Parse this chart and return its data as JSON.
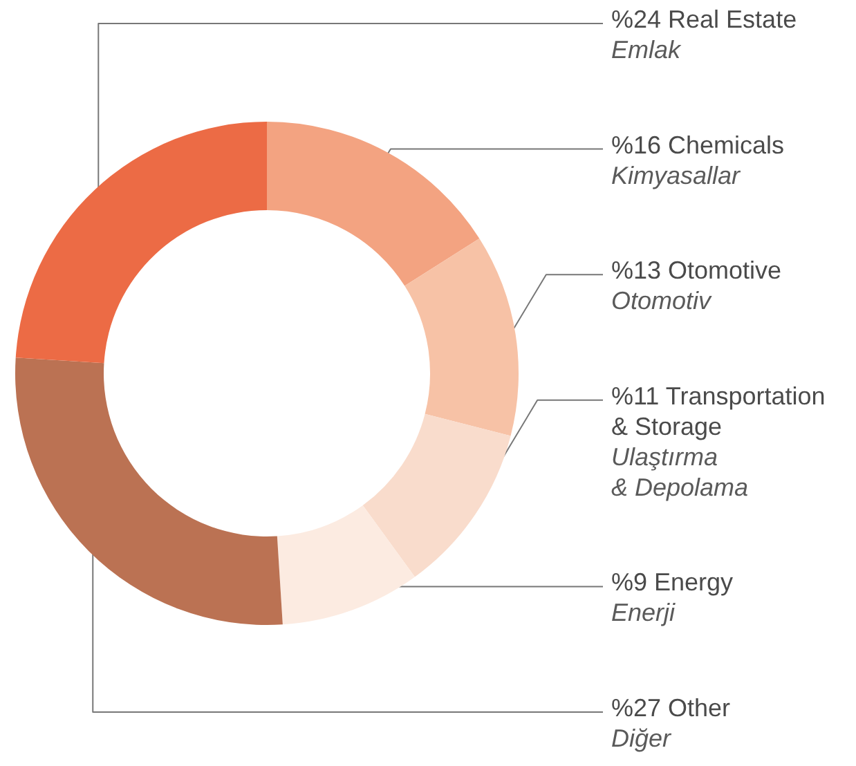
{
  "chart_data": {
    "type": "donut",
    "categories": [
      "Chemicals",
      "Otomotive",
      "Transportation & Storage",
      "Energy",
      "Other",
      "Real Estate"
    ],
    "values": [
      16,
      13,
      11,
      9,
      27,
      24
    ],
    "value_labels": [
      "%16",
      "%13",
      "%11",
      "%9",
      "%27",
      "%24"
    ],
    "colors": [
      "#f3a381",
      "#f7c2a6",
      "#f9dccc",
      "#fcebe1",
      "#bb7253",
      "#ec6b45"
    ],
    "annotations": [
      "Kimyasallar",
      "Otomotiv",
      "Ulaştırma & Depolama",
      "Enerji",
      "Diğer",
      "Emlak"
    ]
  }
}
